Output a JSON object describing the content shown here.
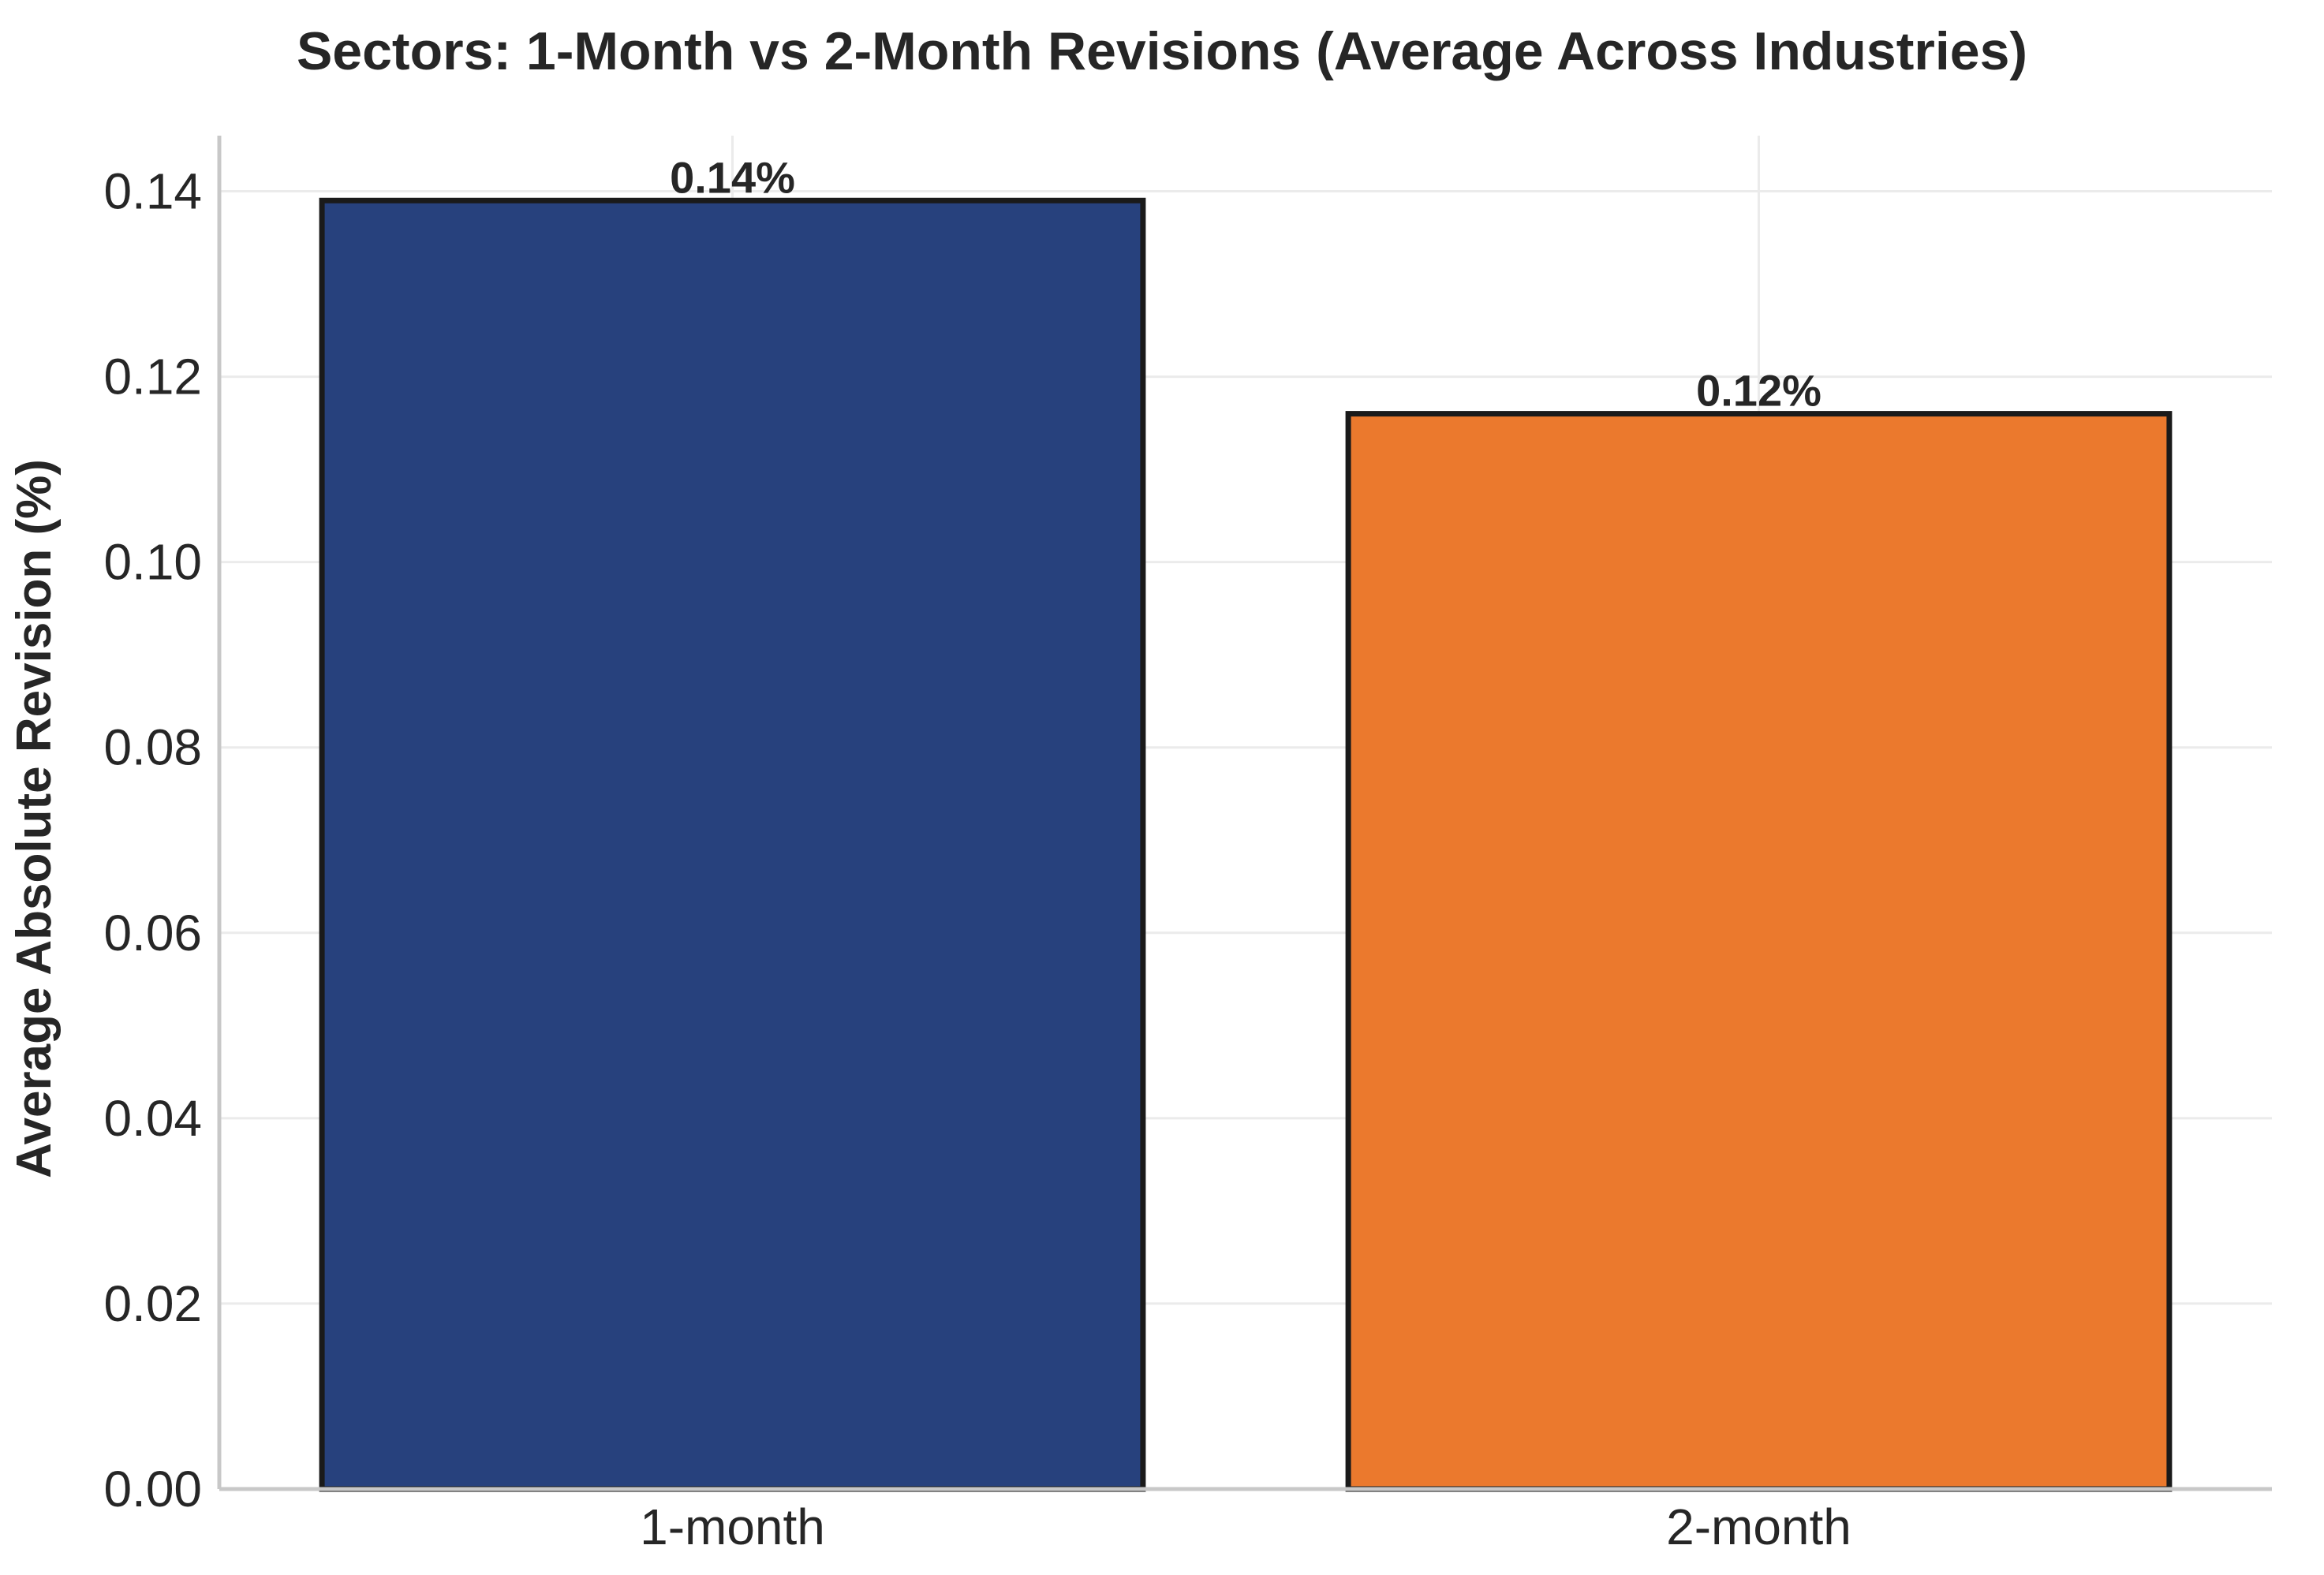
{
  "chart_data": {
    "type": "bar",
    "title": "Sectors: 1-Month vs 2-Month Revisions (Average Across Industries)",
    "xlabel": "",
    "ylabel": "Average Absolute Revision (%)",
    "categories": [
      "1-month",
      "2-month"
    ],
    "values": [
      0.139,
      0.116
    ],
    "data_labels": [
      "0.14%",
      "0.12%"
    ],
    "bar_colors": [
      "#27417d",
      "#eb792d"
    ],
    "bar_edge_color": "#1a1a1a",
    "ylim": [
      0,
      0.146
    ],
    "yticks": [
      0.0,
      0.02,
      0.04,
      0.06,
      0.08,
      0.1,
      0.12,
      0.14
    ],
    "ytick_labels": [
      "0.00",
      "0.02",
      "0.04",
      "0.06",
      "0.08",
      "0.10",
      "0.12",
      "0.14"
    ],
    "grid": true,
    "legend": "none"
  }
}
